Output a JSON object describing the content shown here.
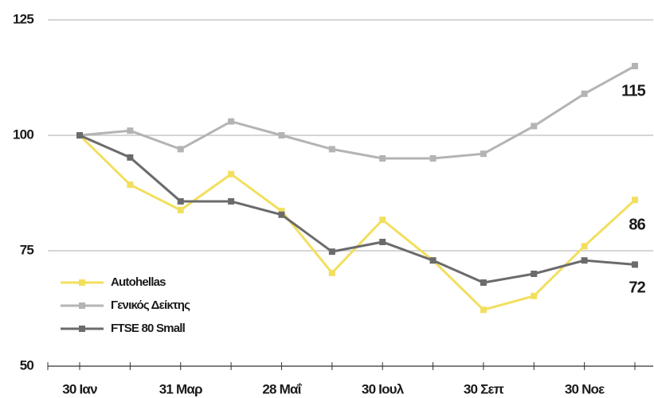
{
  "chart_data": {
    "type": "line",
    "categories": [
      "30 Ιαν",
      null,
      "31 Μαρ",
      null,
      "28 Μαΐ",
      null,
      "30 Ιουλ",
      null,
      "30 Σεπ",
      null,
      "30 Νοε",
      null
    ],
    "series": [
      {
        "name": "Autohellas",
        "color": "#f2df5e",
        "values": [
          100,
          89.3,
          83.8,
          91.6,
          83.6,
          70.2,
          81.7,
          72.9,
          62.2,
          65.2,
          76,
          86
        ],
        "value_labels": [
          null,
          null,
          null,
          null,
          null,
          null,
          null,
          null,
          null,
          null,
          null,
          "86"
        ]
      },
      {
        "name": "Γενικός Δείκτης",
        "color": "#b4b4b4",
        "values": [
          100,
          101,
          97,
          103,
          100,
          97,
          95,
          95,
          96,
          102,
          109,
          115
        ],
        "value_labels": [
          null,
          null,
          null,
          null,
          null,
          null,
          null,
          null,
          null,
          null,
          null,
          "115"
        ]
      },
      {
        "name": "FTSE 80 Small",
        "color": "#6b6b6e",
        "values": [
          100,
          95.2,
          85.7,
          85.7,
          82.8,
          74.8,
          76.9,
          72.9,
          68.1,
          70,
          72.9,
          72
        ],
        "value_labels": [
          null,
          null,
          null,
          null,
          null,
          null,
          null,
          null,
          null,
          null,
          null,
          "72"
        ]
      }
    ],
    "ylim": [
      50,
      125
    ],
    "yticks": [
      50,
      75,
      100,
      125
    ],
    "grid": true,
    "legend": "lower left"
  }
}
